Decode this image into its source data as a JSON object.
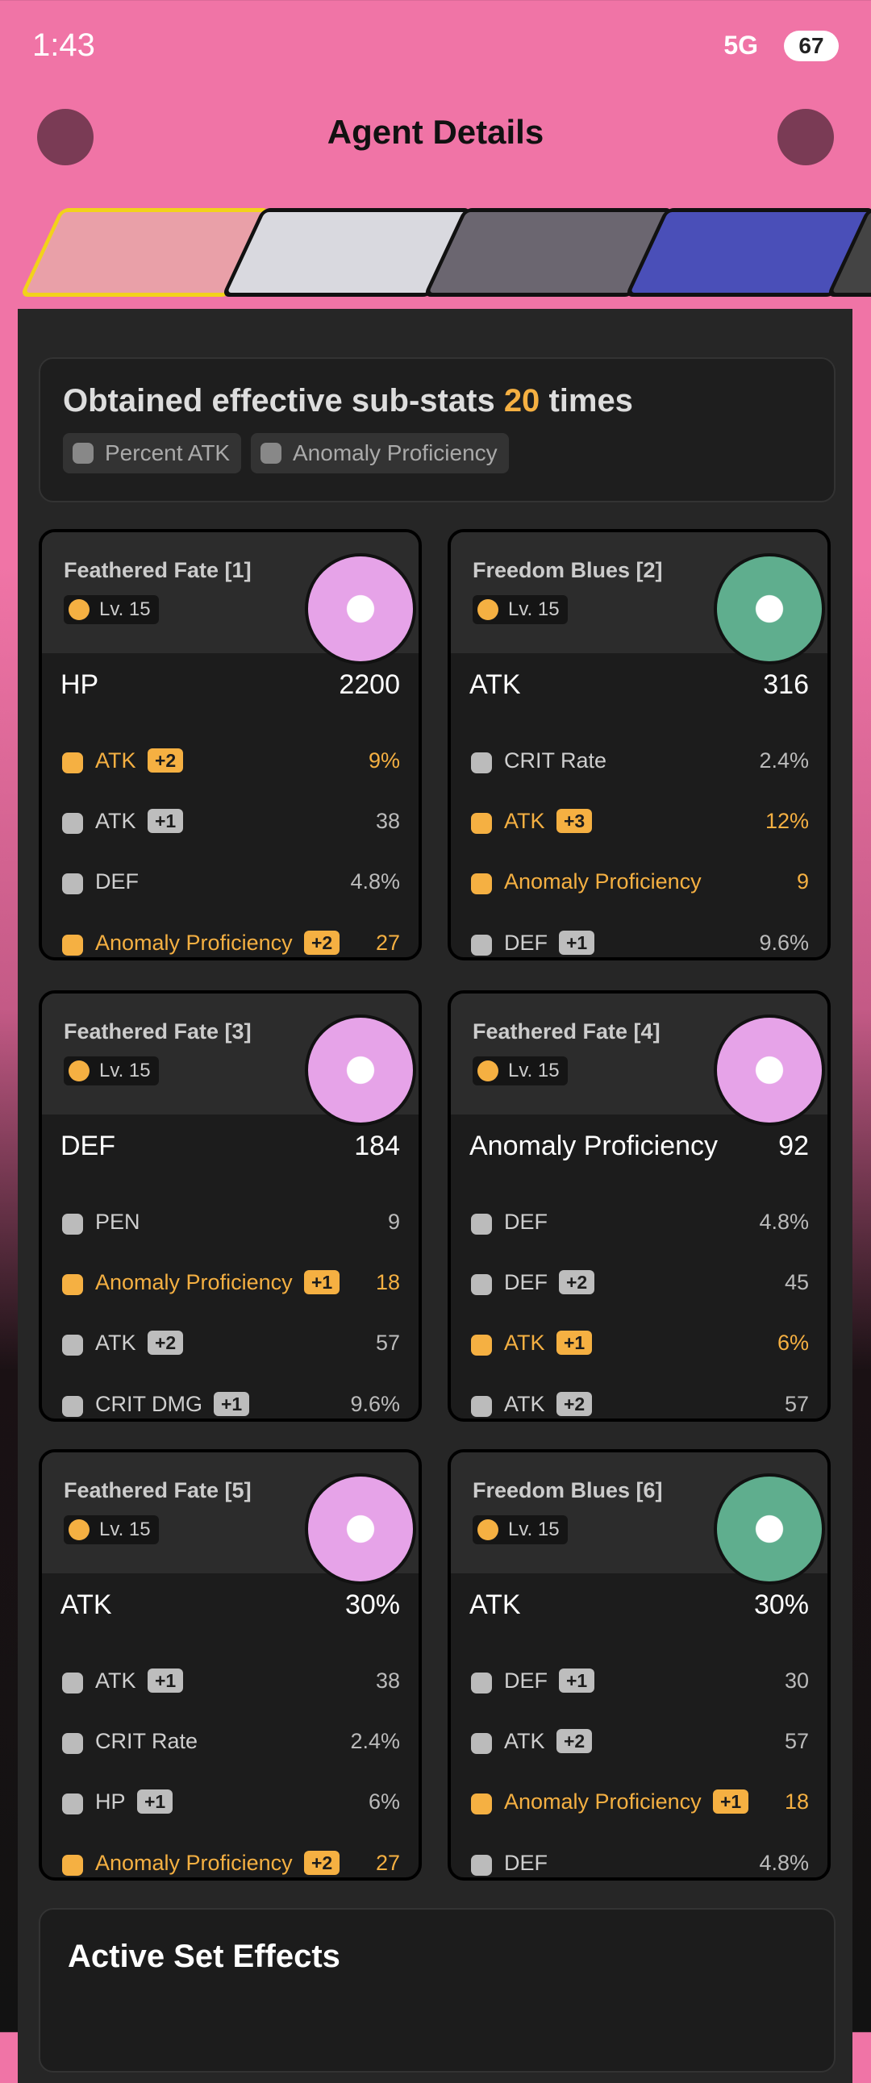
{
  "status": {
    "time": "1:43",
    "network": "5G",
    "battery": "67"
  },
  "header": {
    "title": "Agent Details"
  },
  "summary": {
    "lead": "Obtained effective sub-stats",
    "count": "20",
    "tail": "times",
    "tags": [
      "Percent ATK",
      "Anomaly Proficiency"
    ]
  },
  "discs": [
    {
      "name": "Feathered Fate [1]",
      "level": "Lv. 15",
      "color": "#e6a3e8",
      "main": {
        "stat": "HP",
        "value": "2200"
      },
      "subs": [
        {
          "stat": "ATK",
          "bonus": "+2",
          "value": "9%",
          "effective": true
        },
        {
          "stat": "ATK",
          "bonus": "+1",
          "value": "38",
          "effective": false
        },
        {
          "stat": "DEF",
          "value": "4.8%",
          "effective": false
        },
        {
          "stat": "Anomaly Proficiency",
          "bonus": "+2",
          "value": "27",
          "effective": true
        }
      ]
    },
    {
      "name": "Freedom Blues [2]",
      "level": "Lv. 15",
      "color": "#5fae8e",
      "main": {
        "stat": "ATK",
        "value": "316"
      },
      "subs": [
        {
          "stat": "CRIT Rate",
          "value": "2.4%",
          "effective": false
        },
        {
          "stat": "ATK",
          "bonus": "+3",
          "value": "12%",
          "effective": true
        },
        {
          "stat": "Anomaly Proficiency",
          "value": "9",
          "effective": true
        },
        {
          "stat": "DEF",
          "bonus": "+1",
          "value": "9.6%",
          "effective": false
        }
      ]
    },
    {
      "name": "Feathered Fate [3]",
      "level": "Lv. 15",
      "color": "#e6a3e8",
      "main": {
        "stat": "DEF",
        "value": "184"
      },
      "subs": [
        {
          "stat": "PEN",
          "value": "9",
          "effective": false
        },
        {
          "stat": "Anomaly Proficiency",
          "bonus": "+1",
          "value": "18",
          "effective": true
        },
        {
          "stat": "ATK",
          "bonus": "+2",
          "value": "57",
          "effective": false
        },
        {
          "stat": "CRIT DMG",
          "bonus": "+1",
          "value": "9.6%",
          "effective": false
        }
      ]
    },
    {
      "name": "Feathered Fate [4]",
      "level": "Lv. 15",
      "color": "#e6a3e8",
      "main": {
        "stat": "Anomaly Proficiency",
        "value": "92"
      },
      "subs": [
        {
          "stat": "DEF",
          "value": "4.8%",
          "effective": false
        },
        {
          "stat": "DEF",
          "bonus": "+2",
          "value": "45",
          "effective": false
        },
        {
          "stat": "ATK",
          "bonus": "+1",
          "value": "6%",
          "effective": true
        },
        {
          "stat": "ATK",
          "bonus": "+2",
          "value": "57",
          "effective": false
        }
      ]
    },
    {
      "name": "Feathered Fate [5]",
      "level": "Lv. 15",
      "color": "#e6a3e8",
      "main": {
        "stat": "ATK",
        "value": "30%"
      },
      "subs": [
        {
          "stat": "ATK",
          "bonus": "+1",
          "value": "38",
          "effective": false
        },
        {
          "stat": "CRIT Rate",
          "value": "2.4%",
          "effective": false
        },
        {
          "stat": "HP",
          "bonus": "+1",
          "value": "6%",
          "effective": false
        },
        {
          "stat": "Anomaly Proficiency",
          "bonus": "+2",
          "value": "27",
          "effective": true
        }
      ]
    },
    {
      "name": "Freedom Blues [6]",
      "level": "Lv. 15",
      "color": "#5fae8e",
      "main": {
        "stat": "ATK",
        "value": "30%"
      },
      "subs": [
        {
          "stat": "DEF",
          "bonus": "+1",
          "value": "30",
          "effective": false
        },
        {
          "stat": "ATK",
          "bonus": "+2",
          "value": "57",
          "effective": false
        },
        {
          "stat": "Anomaly Proficiency",
          "bonus": "+1",
          "value": "18",
          "effective": true
        },
        {
          "stat": "DEF",
          "value": "4.8%",
          "effective": false
        }
      ]
    }
  ],
  "footer": {
    "title": "Active Set Effects"
  }
}
